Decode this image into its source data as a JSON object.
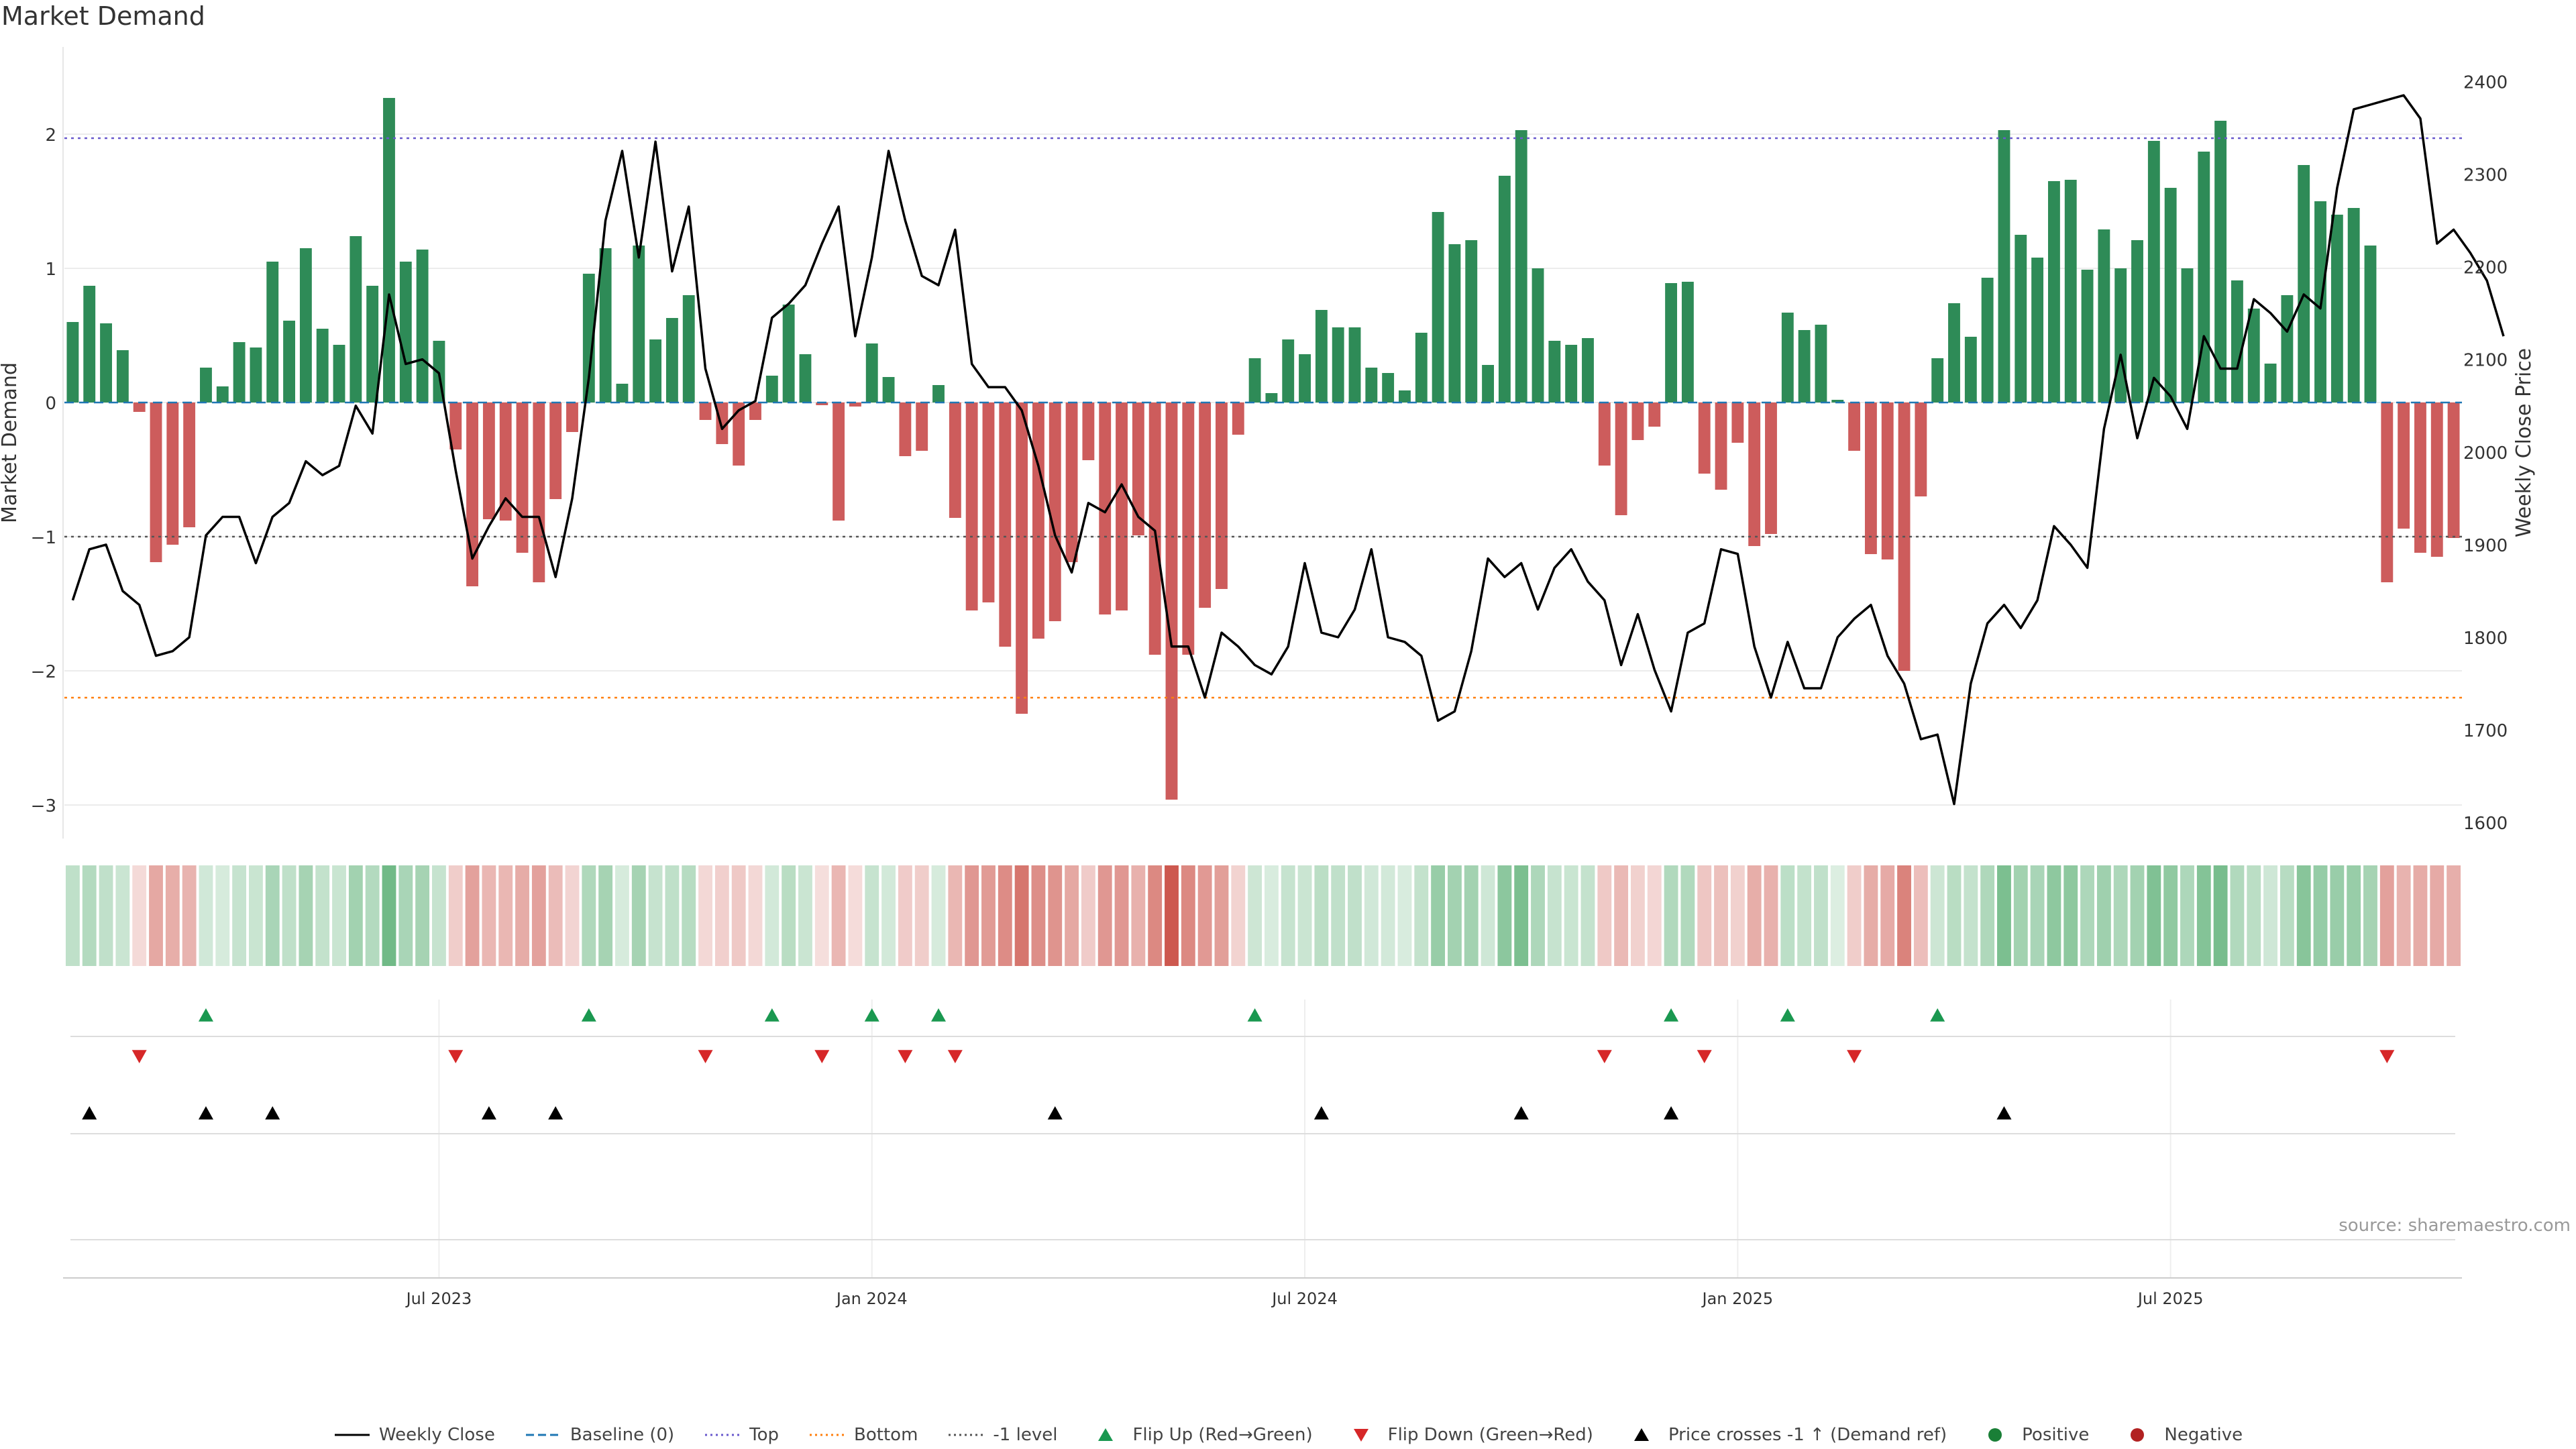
{
  "chart_data": {
    "type": "bar",
    "title": "Market Demand",
    "ylabel_left": "Market Demand",
    "ylabel_right": "Weekly Close Price",
    "source": "source: sharemaestro.com",
    "ylim_left": [
      -3.2,
      2.6
    ],
    "ylim_right": [
      1590,
      2430
    ],
    "left_ticks": [
      2,
      1,
      0,
      -1,
      -2,
      -3
    ],
    "left_tick_labels": [
      "2",
      "1",
      "0",
      "−1",
      "−2",
      "−3"
    ],
    "right_ticks": [
      2400,
      2300,
      2200,
      2100,
      2000,
      1900,
      1800,
      1700,
      1600
    ],
    "right_tick_labels": [
      "2400",
      "2300",
      "2200",
      "2100",
      "2000",
      "1900",
      "1800",
      "1700",
      "1600"
    ],
    "top_level": 1.97,
    "bottom_level": -2.2,
    "minus1_level": -1,
    "x_tick_labels": [
      {
        "index": 22,
        "label": "Jul 2023"
      },
      {
        "index": 48,
        "label": "Jan 2024"
      },
      {
        "index": 74,
        "label": "Jul 2024"
      },
      {
        "index": 100,
        "label": "Jan 2025"
      },
      {
        "index": 126,
        "label": "Jul 2025"
      }
    ],
    "demand": [
      0.6,
      0.87,
      0.59,
      0.39,
      -0.07,
      -1.19,
      -1.06,
      -0.93,
      0.26,
      0.12,
      0.45,
      0.41,
      1.05,
      0.61,
      1.15,
      0.55,
      0.43,
      1.24,
      0.87,
      2.27,
      1.05,
      1.14,
      0.46,
      -0.35,
      -1.37,
      -0.87,
      -0.88,
      -1.12,
      -1.34,
      -0.72,
      -0.22,
      0.96,
      1.15,
      0.14,
      1.17,
      0.47,
      0.63,
      0.8,
      -0.13,
      -0.31,
      -0.47,
      -0.13,
      0.2,
      0.73,
      0.36,
      -0.02,
      -0.88,
      -0.03,
      0.44,
      0.19,
      -0.4,
      -0.36,
      0.13,
      -0.86,
      -1.55,
      -1.49,
      -1.82,
      -2.32,
      -1.76,
      -1.63,
      -1.19,
      -0.43,
      -1.58,
      -1.55,
      -0.99,
      -1.88,
      -2.96,
      -1.88,
      -1.53,
      -1.39,
      -0.24,
      0.33,
      0.07,
      0.47,
      0.36,
      0.69,
      0.56,
      0.56,
      0.26,
      0.22,
      0.09,
      0.52,
      1.42,
      1.18,
      1.21,
      0.28,
      1.69,
      2.03,
      1.0,
      0.46,
      0.43,
      0.48,
      -0.47,
      -0.84,
      -0.28,
      -0.18,
      0.89,
      0.9,
      -0.53,
      -0.65,
      -0.3,
      -1.07,
      -0.98,
      0.67,
      0.54,
      0.58,
      0.02,
      -0.36,
      -1.13,
      -1.17,
      -2.0,
      -0.7,
      0.33,
      0.74,
      0.49,
      0.93,
      2.03,
      1.25,
      1.08,
      1.65,
      1.66,
      0.99,
      1.29,
      1.0,
      1.21,
      1.95,
      1.6,
      1.0,
      1.87,
      2.1,
      0.91,
      0.7,
      0.29,
      0.8,
      1.77,
      1.5,
      1.4,
      1.45,
      1.17,
      -1.34,
      -0.94,
      -1.12,
      -1.15,
      -1.01
    ],
    "weekly_close": [
      1840,
      1895,
      1900,
      1850,
      1835,
      1780,
      1785,
      1800,
      1910,
      1930,
      1930,
      1880,
      1930,
      1945,
      1990,
      1975,
      1985,
      2050,
      2020,
      2170,
      2095,
      2100,
      2085,
      1980,
      1885,
      1920,
      1950,
      1930,
      1930,
      1865,
      1950,
      2080,
      2250,
      2325,
      2210,
      2335,
      2195,
      2265,
      2090,
      2025,
      2045,
      2055,
      2145,
      2160,
      2180,
      2225,
      2265,
      2125,
      2210,
      2325,
      2250,
      2190,
      2180,
      2240,
      2095,
      2070,
      2070,
      2045,
      1985,
      1910,
      1870,
      1945,
      1935,
      1965,
      1930,
      1915,
      1790,
      1790,
      1735,
      1805,
      1790,
      1770,
      1760,
      1790,
      1880,
      1805,
      1800,
      1830,
      1895,
      1800,
      1795,
      1780,
      1710,
      1720,
      1785,
      1885,
      1865,
      1880,
      1830,
      1875,
      1895,
      1860,
      1840,
      1770,
      1825,
      1765,
      1720,
      1805,
      1815,
      1895,
      1890,
      1790,
      1735,
      1795,
      1745,
      1745,
      1800,
      1820,
      1835,
      1780,
      1750,
      1690,
      1695,
      1620,
      1750,
      1815,
      1835,
      1810,
      1840,
      1920,
      1900,
      1875,
      2025,
      2105,
      2015,
      2080,
      2060,
      2025,
      2125,
      2090,
      2090,
      2165,
      2150,
      2130,
      2170,
      2155,
      2285,
      2370,
      2375,
      2380,
      2385,
      2360,
      2225,
      2240,
      2215,
      2185,
      2125
    ],
    "flip_up_indices": [
      8,
      31,
      42,
      48,
      52,
      71,
      96,
      103,
      112
    ],
    "flip_down_indices": [
      4,
      23,
      38,
      45,
      50,
      53,
      92,
      98,
      107,
      139
    ],
    "cross_indices": [
      1,
      8,
      12,
      25,
      29,
      59,
      75,
      87,
      96,
      116
    ],
    "legend": [
      {
        "label": "Weekly Close",
        "kind": "line",
        "color": "#000000"
      },
      {
        "label": "Baseline (0)",
        "kind": "dashed",
        "color": "#1f77b4"
      },
      {
        "label": "Top",
        "kind": "dotted",
        "color": "#6a5acd"
      },
      {
        "label": "Bottom",
        "kind": "dotted",
        "color": "#ff7f0e"
      },
      {
        "label": "-1 level",
        "kind": "dotted",
        "color": "#555555"
      },
      {
        "label": "Flip Up (Red→Green)",
        "kind": "tri-up",
        "color": "#1a9850"
      },
      {
        "label": "Flip Down (Green→Red)",
        "kind": "tri-down",
        "color": "#d62728"
      },
      {
        "label": "Price crosses -1 ↑ (Demand ref)",
        "kind": "tri-up",
        "color": "#000000"
      },
      {
        "label": "Positive",
        "kind": "dot",
        "color": "#1a7f37"
      },
      {
        "label": "Negative",
        "kind": "dot",
        "color": "#b22222"
      }
    ],
    "colors": {
      "positive": "#2e8b57",
      "negative": "#cd5c5c",
      "close": "#000000"
    }
  }
}
